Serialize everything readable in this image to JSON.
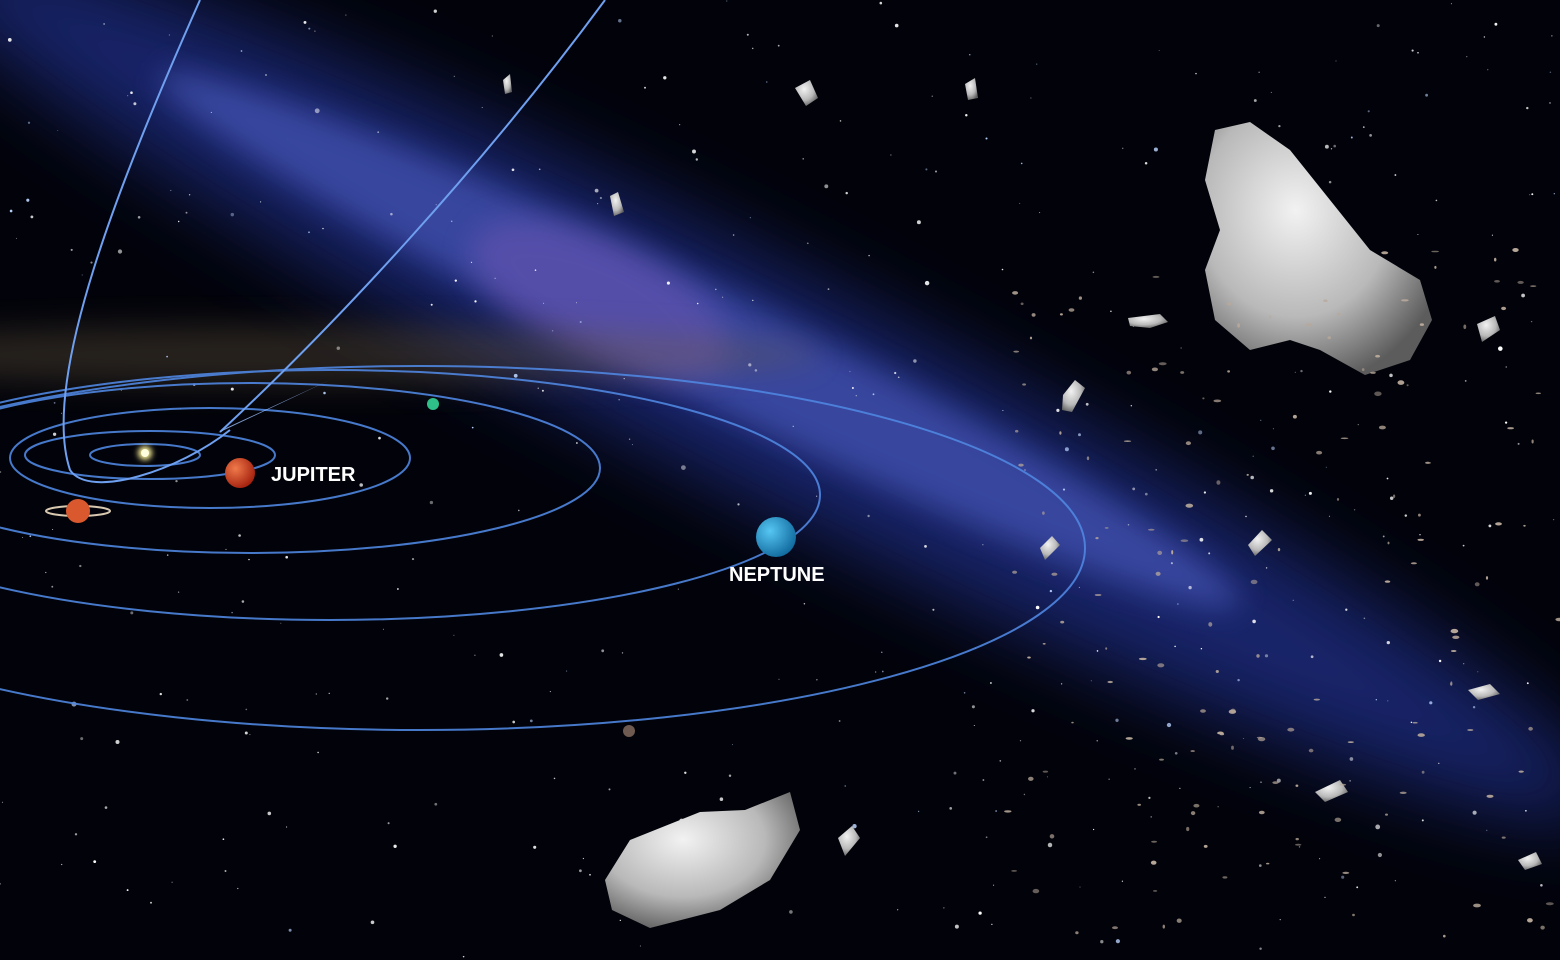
{
  "planet_labels": [
    "JUPITER",
    "NEPTUNE"
  ]
}
